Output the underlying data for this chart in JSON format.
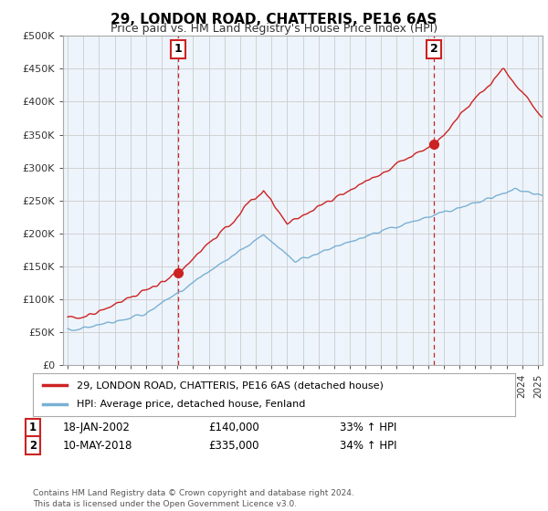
{
  "title": "29, LONDON ROAD, CHATTERIS, PE16 6AS",
  "subtitle": "Price paid vs. HM Land Registry's House Price Index (HPI)",
  "ylabel_ticks": [
    "£0",
    "£50K",
    "£100K",
    "£150K",
    "£200K",
    "£250K",
    "£300K",
    "£350K",
    "£400K",
    "£450K",
    "£500K"
  ],
  "ylim": [
    0,
    500000
  ],
  "xlim_start": 1994.7,
  "xlim_end": 2025.3,
  "sale1_date": 2002.05,
  "sale1_price": 140000,
  "sale1_label": "1",
  "sale2_date": 2018.37,
  "sale2_price": 335000,
  "sale2_label": "2",
  "line_color_property": "#cc2222",
  "line_color_hpi": "#7ab0d4",
  "marker_color": "#cc2222",
  "vline_color": "#cc2222",
  "grid_color": "#cccccc",
  "bg_color": "#ffffff",
  "plot_bg_color": "#eef4fb",
  "legend_label_property": "29, LONDON ROAD, CHATTERIS, PE16 6AS (detached house)",
  "legend_label_hpi": "HPI: Average price, detached house, Fenland",
  "annotation1_date": "18-JAN-2002",
  "annotation1_price": "£140,000",
  "annotation1_pct": "33% ↑ HPI",
  "annotation2_date": "10-MAY-2018",
  "annotation2_price": "£335,000",
  "annotation2_pct": "34% ↑ HPI",
  "footnote": "Contains HM Land Registry data © Crown copyright and database right 2024.\nThis data is licensed under the Open Government Licence v3.0."
}
